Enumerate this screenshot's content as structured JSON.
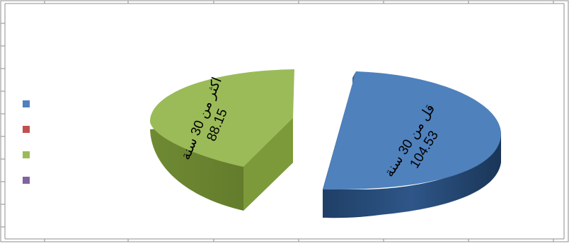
{
  "chart_data": {
    "type": "pie",
    "style": "3d-exploded",
    "title": "",
    "slices": [
      {
        "label": "قل من 30 سنة",
        "value": 104.53,
        "color": "#4F81BD"
      },
      {
        "label": "اكثر من 30 سنة",
        "value": 88.15,
        "color": "#9BBB59"
      }
    ],
    "legend": {
      "placement": "left",
      "entries": [
        {
          "label": "",
          "color": "#4F81BD"
        },
        {
          "label": "",
          "color": "#C0504D"
        },
        {
          "label": "",
          "color": "#9BBB59"
        },
        {
          "label": "",
          "color": "#8064A2"
        }
      ]
    }
  }
}
